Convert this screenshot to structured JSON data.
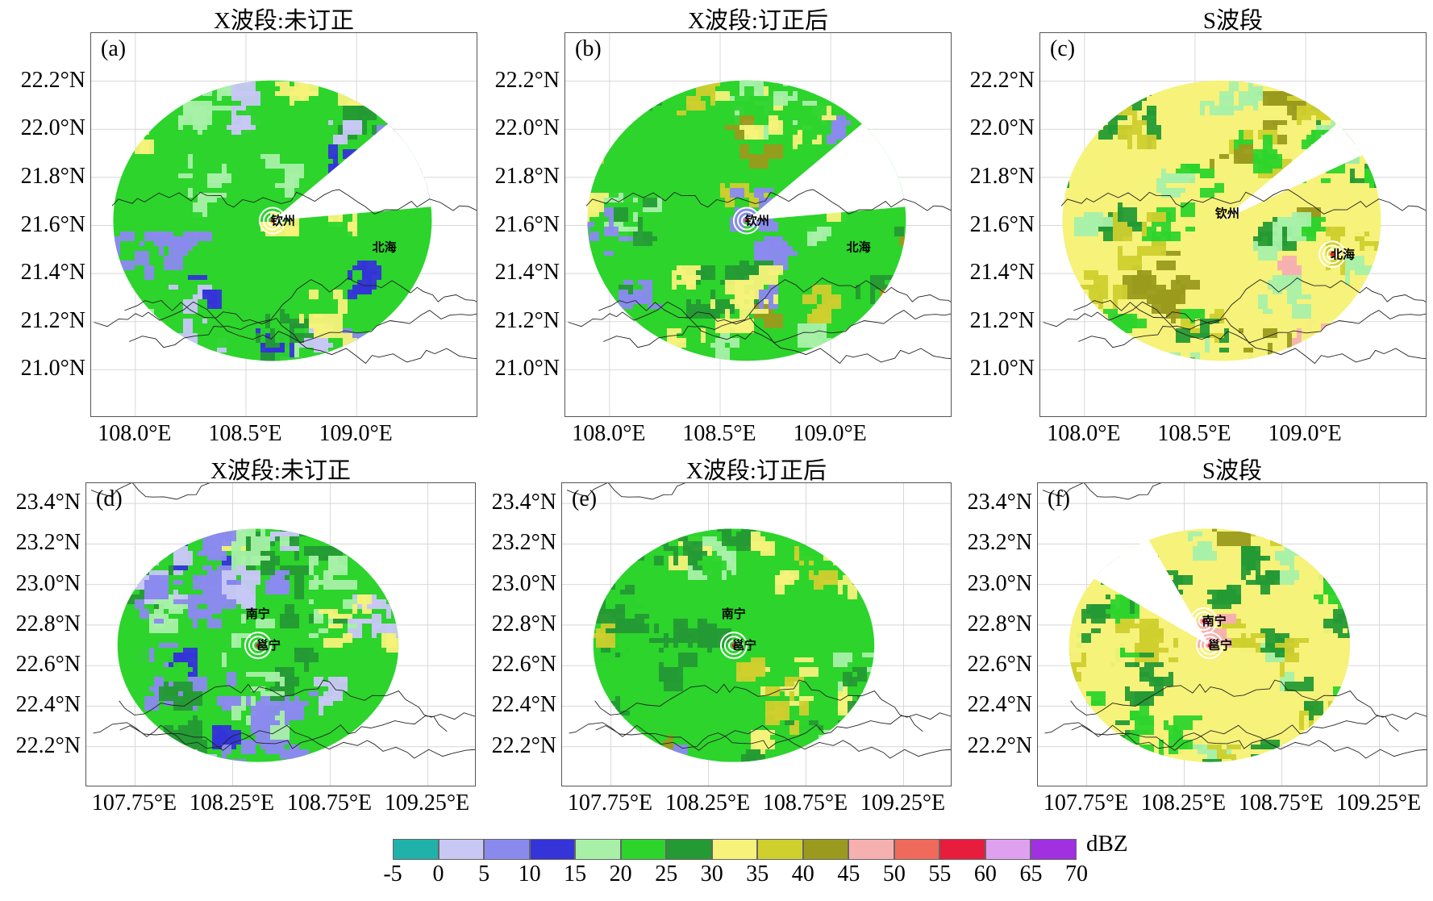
{
  "panels": [
    {
      "id": "a",
      "tag": "(a)",
      "title": "X波段:未订正",
      "region": "top",
      "scheme": "uncorrected",
      "sector_cut": [
        -40,
        -5
      ],
      "cities": [
        {
          "name": "钦州",
          "lon": 108.62,
          "lat": 21.62,
          "radar": true
        },
        {
          "name": "北海",
          "lon": 109.1,
          "lat": 21.48,
          "radar": false
        }
      ]
    },
    {
      "id": "b",
      "tag": "(b)",
      "title": "X波段:订正后",
      "region": "top",
      "scheme": "corrected",
      "sector_cut": [
        -40,
        -5
      ],
      "cities": [
        {
          "name": "钦州",
          "lon": 108.62,
          "lat": 21.62,
          "radar": true
        },
        {
          "name": "北海",
          "lon": 109.1,
          "lat": 21.48,
          "radar": false
        }
      ]
    },
    {
      "id": "c",
      "tag": "(c)",
      "title": "S波段",
      "region": "top",
      "scheme": "sband",
      "sector_cut": [
        -40,
        -25
      ],
      "cities": [
        {
          "name": "钦州",
          "lon": 108.62,
          "lat": 21.62,
          "radar": false
        },
        {
          "name": "北海",
          "lon": 109.12,
          "lat": 21.48,
          "radar": true
        }
      ]
    },
    {
      "id": "d",
      "tag": "(d)",
      "title": "X波段:未订正",
      "region": "bottom",
      "scheme": "uncorrected",
      "sector_cut": null,
      "cities": [
        {
          "name": "南宁",
          "lon": 108.35,
          "lat": 22.82,
          "radar": false
        },
        {
          "name": "邕宁",
          "lon": 108.38,
          "lat": 22.7,
          "radar": true
        }
      ]
    },
    {
      "id": "e",
      "tag": "(e)",
      "title": "X波段:订正后",
      "region": "bottom",
      "scheme": "corrected",
      "sector_cut": null,
      "cities": [
        {
          "name": "南宁",
          "lon": 108.35,
          "lat": 22.82,
          "radar": false
        },
        {
          "name": "邕宁",
          "lon": 108.38,
          "lat": 22.7,
          "radar": true
        }
      ]
    },
    {
      "id": "f",
      "tag": "(f)",
      "title": "S波段",
      "region": "bottom",
      "scheme": "sband",
      "sector_cut": [
        -150,
        -120
      ],
      "cities": [
        {
          "name": "南宁",
          "lon": 108.35,
          "lat": 22.82,
          "radar": true
        },
        {
          "name": "邕宁",
          "lon": 108.38,
          "lat": 22.7,
          "radar": true
        }
      ]
    }
  ],
  "axes": {
    "top": {
      "lon_range": [
        107.8,
        109.55
      ],
      "lat_range": [
        20.8,
        22.4
      ],
      "lon_ticks": [
        108.0,
        108.5,
        109.0
      ],
      "lat_ticks": [
        21.0,
        21.2,
        21.4,
        21.6,
        21.8,
        22.0,
        22.2
      ],
      "lon_labels": [
        "108.0°E",
        "108.5°E",
        "109.0°E"
      ],
      "lat_labels": [
        "21.0°N",
        "21.2°N",
        "21.4°N",
        "21.6°N",
        "21.8°N",
        "22.0°N",
        "22.2°N"
      ],
      "radar_center": [
        108.62,
        21.62
      ],
      "radar_radius_deg": 0.72
    },
    "bottom": {
      "lon_range": [
        107.5,
        109.5
      ],
      "lat_range": [
        22.0,
        23.5
      ],
      "lon_ticks": [
        107.75,
        108.25,
        108.75,
        109.25
      ],
      "lat_ticks": [
        22.2,
        22.4,
        22.6,
        22.8,
        23.0,
        23.2,
        23.4
      ],
      "lon_labels": [
        "107.75°E",
        "108.25°E",
        "108.75°E",
        "109.25°E"
      ],
      "lat_labels": [
        "22.2°N",
        "22.4°N",
        "22.6°N",
        "22.8°N",
        "23.0°N",
        "23.2°N",
        "23.4°N"
      ],
      "radar_center": [
        108.38,
        22.7
      ],
      "radar_radius_deg": 0.72
    }
  },
  "colorbar": {
    "unit": "dBZ",
    "ticks": [
      "-5",
      "0",
      "5",
      "10",
      "15",
      "20",
      "25",
      "30",
      "35",
      "40",
      "45",
      "50",
      "55",
      "60",
      "65",
      "70"
    ],
    "colors": [
      "#20b2aa",
      "#c8c8f5",
      "#8a8aee",
      "#3434d8",
      "#a8f0a8",
      "#2cd42c",
      "#249a34",
      "#f6f27a",
      "#cfcf2e",
      "#9a9a1e",
      "#f7b0b0",
      "#f06a5c",
      "#e81c3c",
      "#e0a0f0",
      "#a030e0"
    ]
  }
}
